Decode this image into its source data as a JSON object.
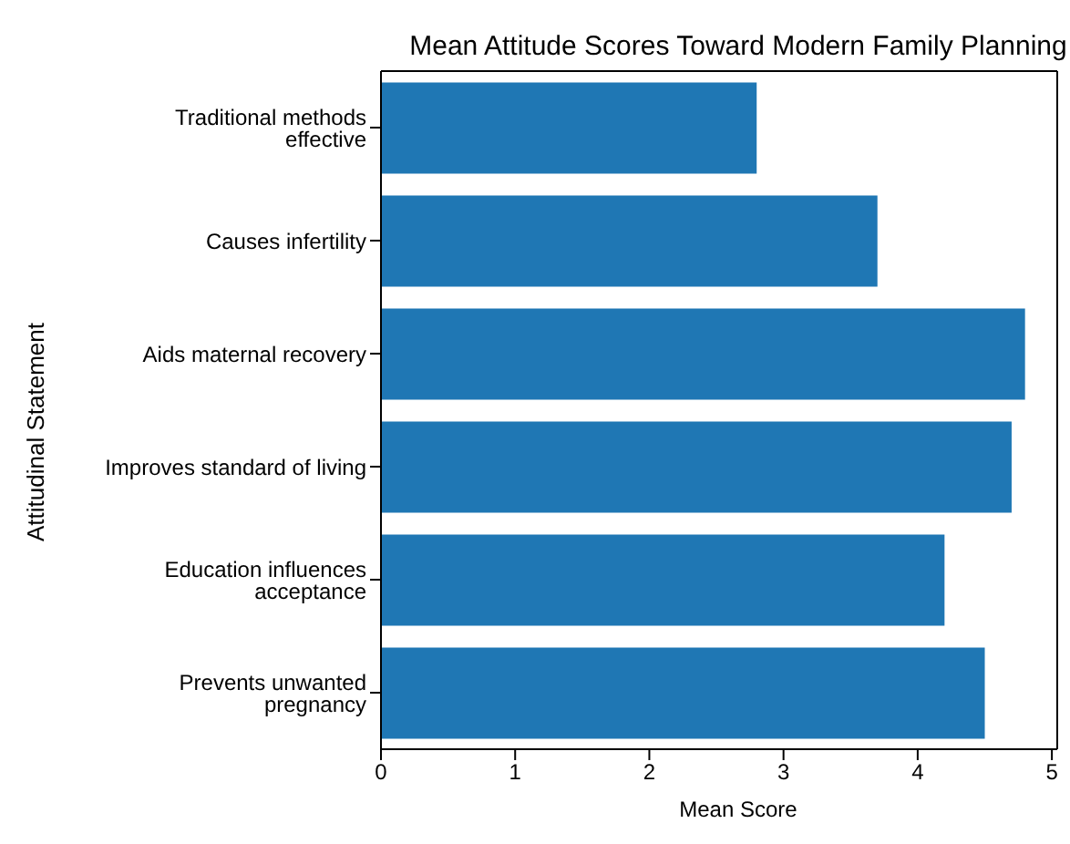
{
  "chart_data": {
    "type": "bar",
    "orientation": "horizontal",
    "title": "Mean Attitude Scores Toward Modern Family Planning",
    "xlabel": "Mean Score",
    "ylabel": "Attitudinal Statement",
    "categories": [
      "Traditional methods effective",
      "Causes infertility",
      "Aids maternal recovery",
      "Improves standard of living",
      "Education influences acceptance",
      "Prevents unwanted pregnancy"
    ],
    "values": [
      2.8,
      3.7,
      4.8,
      4.7,
      4.2,
      4.5
    ],
    "color": "#1f77b4",
    "xlim": [
      0,
      5.04
    ],
    "xticks": [
      0,
      1,
      2,
      3,
      4,
      5
    ],
    "grid": false,
    "legend": false
  }
}
